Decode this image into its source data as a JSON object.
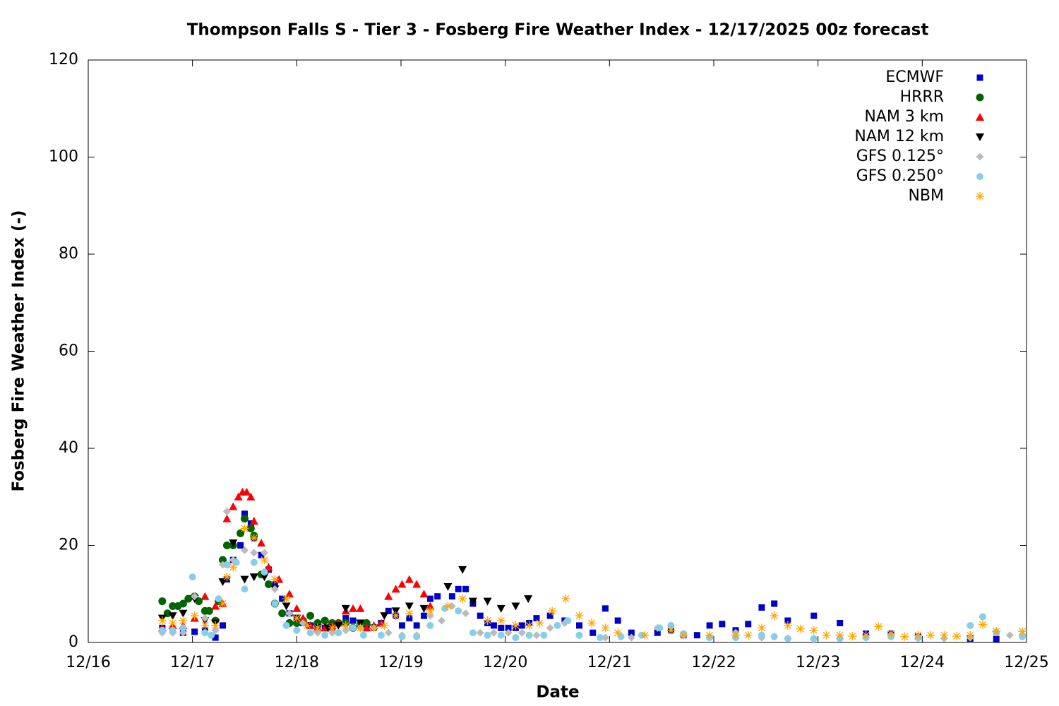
{
  "chart_data": {
    "type": "scatter",
    "title": "Thompson Falls S - Tier 3 - Fosberg Fire Weather Index - 12/17/2025 00z forecast",
    "x_label": "Date",
    "y_label": "Fosberg Fire Weather Index (-)",
    "xlim": [
      16,
      25
    ],
    "xticks": [
      {
        "value": 16,
        "label": "12/16"
      },
      {
        "value": 17,
        "label": "12/17"
      },
      {
        "value": 18,
        "label": "12/18"
      },
      {
        "value": 19,
        "label": "12/19"
      },
      {
        "value": 20,
        "label": "12/20"
      },
      {
        "value": 21,
        "label": "12/21"
      },
      {
        "value": 22,
        "label": "12/22"
      },
      {
        "value": 23,
        "label": "12/23"
      },
      {
        "value": 24,
        "label": "12/24"
      },
      {
        "value": 25,
        "label": "12/25"
      }
    ],
    "ylim": [
      0,
      120
    ],
    "yticks": [
      0,
      20,
      40,
      60,
      80,
      100,
      120
    ],
    "legend": "top right",
    "series": [
      {
        "name": "ECMWF",
        "color": "#0000cc",
        "marker": "square",
        "x": [
          16.71,
          16.81,
          16.91,
          17.02,
          17.12,
          17.22,
          17.29,
          17.33,
          17.39,
          17.46,
          17.5,
          17.56,
          17.59,
          17.66,
          17.73,
          17.79,
          17.86,
          17.93,
          18.0,
          18.06,
          18.13,
          18.2,
          18.27,
          18.34,
          18.47,
          18.54,
          18.61,
          18.67,
          18.74,
          18.81,
          18.88,
          18.95,
          19.01,
          19.08,
          19.15,
          19.22,
          19.28,
          19.35,
          19.49,
          19.55,
          19.62,
          19.69,
          19.76,
          19.83,
          19.89,
          19.96,
          20.03,
          20.1,
          20.16,
          20.23,
          20.3,
          20.43,
          20.57,
          20.71,
          20.84,
          20.96,
          21.08,
          21.21,
          21.46,
          21.59,
          21.71,
          21.84,
          21.96,
          22.08,
          22.21,
          22.33,
          22.46,
          22.58,
          22.71,
          22.96,
          23.21,
          23.46,
          23.7,
          23.96,
          24.46,
          24.71
        ],
        "values": [
          3,
          2.5,
          2,
          2.2,
          2.5,
          1,
          3.5,
          13,
          17,
          20,
          26.5,
          24.5,
          21.5,
          18,
          15,
          12,
          9,
          6,
          4.5,
          4,
          3.5,
          3,
          3,
          3,
          5,
          4.5,
          3.5,
          3.5,
          3,
          4,
          6.5,
          5.5,
          3.5,
          5,
          3.5,
          5.5,
          9,
          9.5,
          9.5,
          11,
          11,
          8,
          5.5,
          4,
          3.5,
          3,
          3,
          3,
          3.5,
          4,
          5,
          5.5,
          4.5,
          3.5,
          2,
          7,
          4.5,
          2,
          2,
          2.5,
          1.5,
          1.5,
          3.5,
          3.8,
          2.5,
          3.8,
          7.2,
          8,
          4.5,
          5.5,
          4,
          1.8,
          1.8,
          1.2,
          0.8,
          0.7
        ]
      },
      {
        "name": "HRRR",
        "color": "#006400",
        "marker": "circle",
        "x": [
          16.71,
          16.76,
          16.81,
          16.86,
          16.91,
          16.96,
          17.02,
          17.06,
          17.12,
          17.16,
          17.22,
          17.25,
          17.29,
          17.33,
          17.39,
          17.46,
          17.5,
          17.56,
          17.59,
          17.66,
          17.73,
          17.79,
          17.86,
          17.93,
          18.0,
          18.06,
          18.13,
          18.2,
          18.27,
          18.34,
          18.4,
          18.47,
          18.54,
          18.61,
          18.67
        ],
        "values": [
          8.5,
          6,
          7.5,
          7.5,
          8,
          9,
          9.5,
          8.5,
          6.5,
          6.5,
          4.5,
          8.5,
          17,
          20,
          20,
          22.5,
          25.5,
          23.5,
          22,
          14,
          12,
          8,
          6,
          4,
          4,
          4.5,
          5.5,
          4,
          4.5,
          4,
          4,
          4,
          3,
          3.5,
          4
        ]
      },
      {
        "name": "NAM 3 km",
        "color": "#ff0000",
        "marker": "triangle",
        "x": [
          16.71,
          16.81,
          16.91,
          17.02,
          17.12,
          17.22,
          17.29,
          17.33,
          17.39,
          17.44,
          17.48,
          17.52,
          17.56,
          17.59,
          17.66,
          17.73,
          17.83,
          17.93,
          18.0,
          18.06,
          18.13,
          18.2,
          18.27,
          18.34,
          18.4,
          18.47,
          18.54,
          18.61,
          18.67,
          18.74,
          18.81,
          18.88,
          18.95,
          19.01,
          19.08,
          19.15,
          19.22,
          19.28
        ],
        "values": [
          3,
          3.5,
          3.5,
          5,
          9.5,
          7.5,
          8,
          25.5,
          28,
          30,
          31,
          31,
          30,
          25,
          20.5,
          15.5,
          13,
          10,
          7,
          5,
          3.5,
          3,
          3,
          3.5,
          4,
          6.5,
          7,
          7,
          3,
          3.5,
          4,
          9.5,
          11,
          12,
          13,
          12,
          10,
          7.5
        ]
      },
      {
        "name": "NAM 12 km",
        "color": "#000000",
        "marker": "triangle-down",
        "x": [
          16.71,
          16.81,
          16.91,
          17.02,
          17.12,
          17.22,
          17.29,
          17.39,
          17.5,
          17.59,
          17.69,
          17.79,
          17.9,
          18.0,
          18.1,
          18.2,
          18.3,
          18.4,
          18.47,
          18.61,
          18.74,
          18.84,
          18.95,
          19.08,
          19.22,
          19.45,
          19.59,
          19.69,
          19.83,
          19.96,
          20.1,
          20.22
        ],
        "values": [
          5,
          5.5,
          6,
          9,
          4.5,
          4,
          12.5,
          20.5,
          13,
          13.5,
          13.5,
          11,
          7.5,
          5,
          3.5,
          3,
          3,
          3.5,
          7,
          4,
          3,
          5.5,
          6.5,
          7.5,
          7,
          11.5,
          15,
          8.5,
          8.5,
          7,
          7.5,
          9
        ]
      },
      {
        "name": "GFS 0.125°",
        "color": "#bbbbbb",
        "marker": "diamond",
        "x": [
          16.71,
          16.81,
          16.91,
          17.02,
          17.12,
          17.22,
          17.29,
          17.33,
          17.39,
          17.5,
          17.59,
          17.69,
          17.79,
          17.93,
          18.06,
          18.2,
          18.34,
          18.47,
          18.61,
          18.74,
          18.88,
          19.01,
          19.15,
          19.28,
          19.39,
          19.49,
          19.62,
          19.76,
          19.89,
          20.03,
          20.16,
          20.3,
          20.43,
          20.57,
          20.71,
          20.96,
          21.21,
          21.46,
          21.59,
          21.71,
          21.96,
          22.21,
          22.46,
          22.71,
          22.96,
          23.21,
          23.46,
          23.7,
          23.96,
          24.21,
          24.46,
          24.71,
          24.84,
          24.96
        ],
        "values": [
          2,
          2,
          2,
          9.5,
          5,
          2.5,
          16,
          27,
          17,
          19,
          18.5,
          18.5,
          11,
          6,
          4,
          2,
          2,
          2.5,
          3,
          3,
          2,
          1.5,
          1.5,
          5.5,
          4.5,
          7.5,
          6,
          2,
          2,
          2,
          2,
          1.5,
          3,
          4,
          1.5,
          1,
          1,
          3,
          3.5,
          1.5,
          1,
          2,
          1,
          0.8,
          0.6,
          0.8,
          1,
          1.5,
          0.8,
          0.8,
          1,
          2.3,
          1.5,
          1.5
        ]
      },
      {
        "name": "GFS 0.250°",
        "color": "#87ceeb",
        "marker": "hexagon",
        "x": [
          16.71,
          16.81,
          16.91,
          17.0,
          17.12,
          17.18,
          17.25,
          17.33,
          17.42,
          17.5,
          17.59,
          17.69,
          17.79,
          17.9,
          18.0,
          18.13,
          18.27,
          18.4,
          18.54,
          18.64,
          18.81,
          19.01,
          19.15,
          19.28,
          19.42,
          19.55,
          19.69,
          19.83,
          19.96,
          20.1,
          20.23,
          20.37,
          20.5,
          20.6,
          20.71,
          20.91,
          21.11,
          21.31,
          21.48,
          21.59,
          21.71,
          21.96,
          22.21,
          22.46,
          22.58,
          22.71,
          22.96,
          23.21,
          23.46,
          23.7,
          23.96,
          24.46,
          24.58,
          24.71,
          24.96
        ],
        "values": [
          2.5,
          2.5,
          3,
          13.5,
          2,
          1.5,
          9,
          16,
          16.5,
          11,
          16.5,
          14.5,
          8,
          3.5,
          2.5,
          2,
          1.5,
          2,
          3,
          1.5,
          1.5,
          1.2,
          1.2,
          3.5,
          7,
          6.5,
          2,
          1.5,
          1.5,
          1,
          1.5,
          1.5,
          3.5,
          4.5,
          1.5,
          1,
          1.2,
          1.5,
          3,
          3.5,
          1.8,
          1,
          1,
          1.5,
          1.2,
          0.8,
          0.8,
          0.8,
          1,
          1.2,
          1,
          3.5,
          5.3,
          2,
          1.2
        ]
      },
      {
        "name": "NBM",
        "color": "#ffa500",
        "marker": "asterisk",
        "x": [
          16.71,
          16.81,
          16.91,
          17.02,
          17.12,
          17.22,
          17.29,
          17.33,
          17.39,
          17.5,
          17.59,
          17.69,
          17.79,
          17.9,
          18.0,
          18.1,
          18.2,
          18.34,
          18.47,
          18.61,
          18.74,
          18.84,
          18.95,
          19.08,
          19.28,
          19.45,
          19.59,
          19.83,
          19.96,
          20.1,
          20.23,
          20.33,
          20.45,
          20.58,
          20.71,
          20.83,
          20.96,
          21.08,
          21.34,
          21.59,
          21.71,
          21.96,
          22.21,
          22.33,
          22.46,
          22.58,
          22.71,
          22.83,
          22.96,
          23.08,
          23.21,
          23.33,
          23.46,
          23.58,
          23.7,
          23.83,
          23.96,
          24.08,
          24.21,
          24.33,
          24.46,
          24.58,
          24.71,
          24.96
        ],
        "values": [
          4.5,
          4,
          4.5,
          5.5,
          3.5,
          3.5,
          8,
          13.5,
          15.5,
          23.5,
          21.5,
          17,
          13,
          9,
          5,
          3.5,
          3,
          3,
          3.5,
          3,
          3,
          3.5,
          5.5,
          6,
          6.5,
          7.5,
          9,
          4.5,
          4.5,
          3.5,
          3.5,
          4,
          6.5,
          9,
          5.5,
          4,
          3,
          2,
          1.5,
          2.5,
          1.5,
          1.5,
          1.5,
          1.5,
          3,
          5.5,
          3.5,
          2.8,
          2.5,
          1.5,
          1.5,
          1.3,
          1.5,
          3.3,
          1.8,
          1.2,
          1.5,
          1.5,
          1.5,
          1.3,
          1.5,
          3.7,
          2.3,
          2.3
        ]
      }
    ]
  }
}
